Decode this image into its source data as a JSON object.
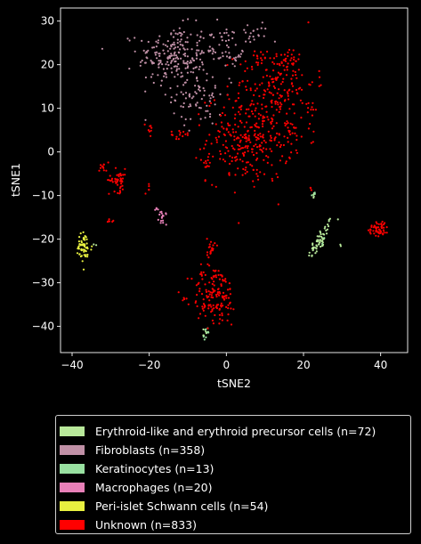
{
  "chart_data": {
    "type": "scatter",
    "xlabel": "tSNE2",
    "ylabel": "tSNE1",
    "xlim": [
      -43,
      47
    ],
    "ylim": [
      -46,
      33
    ],
    "x_ticks": [
      -40,
      -20,
      0,
      20,
      40
    ],
    "y_ticks": [
      -40,
      -30,
      -20,
      -10,
      0,
      10,
      20,
      30
    ],
    "x_tick_labels": [
      "−40",
      "−20",
      "0",
      "20",
      "40"
    ],
    "y_tick_labels": [
      "−40",
      "−30",
      "−20",
      "−10",
      "0",
      "10",
      "20",
      "30"
    ],
    "grid": false,
    "legend_position": "below",
    "series": [
      {
        "name": "Erythroid-like and erythroid precursor cells (n=72)",
        "color": "#b8e89a",
        "clusters": [
          {
            "x": 24.5,
            "y": -20.0,
            "sx": 1.6,
            "sy": 2.3,
            "n": 58,
            "rho": 0.85
          },
          {
            "x": 22.5,
            "y": -9.8,
            "sx": 0.4,
            "sy": 0.4,
            "n": 4
          },
          {
            "x": -5.5,
            "y": -41.5,
            "sx": 0.6,
            "sy": 0.6,
            "n": 6
          },
          {
            "x": 29.5,
            "y": -21.5,
            "sx": 0.2,
            "sy": 0.2,
            "n": 2
          },
          {
            "x": -34.0,
            "y": -21.0,
            "sx": 0.3,
            "sy": 0.3,
            "n": 2
          }
        ]
      },
      {
        "name": "Fibroblasts (n=358)",
        "color": "#c090a6",
        "clusters": [
          {
            "x": -14.0,
            "y": 22.0,
            "sx": 4.5,
            "sy": 3.5,
            "n": 200
          },
          {
            "x": -7.0,
            "y": 13.0,
            "sx": 3.5,
            "sy": 3.5,
            "n": 80
          },
          {
            "x": -2.0,
            "y": 24.0,
            "sx": 3.0,
            "sy": 2.5,
            "n": 48
          },
          {
            "x": 7.0,
            "y": 27.0,
            "sx": 2.0,
            "sy": 1.5,
            "n": 20
          },
          {
            "x": 3.0,
            "y": 22.0,
            "sx": 1.0,
            "sy": 1.0,
            "n": 10
          }
        ]
      },
      {
        "name": "Keratinocytes (n=13)",
        "color": "#98e0a0",
        "clusters": [
          {
            "x": -5.0,
            "y": -41.5,
            "sx": 0.7,
            "sy": 0.6,
            "n": 8
          },
          {
            "x": 22.5,
            "y": -10.0,
            "sx": 0.3,
            "sy": 0.3,
            "n": 3
          },
          {
            "x": 24.5,
            "y": -20.5,
            "sx": 0.4,
            "sy": 0.4,
            "n": 2
          }
        ]
      },
      {
        "name": "Macrophages (n=20)",
        "color": "#e880b8",
        "clusters": [
          {
            "x": -16.5,
            "y": -15.0,
            "sx": 0.5,
            "sy": 0.8,
            "n": 16
          },
          {
            "x": -18.0,
            "y": -13.5,
            "sx": 0.3,
            "sy": 0.3,
            "n": 4
          }
        ]
      },
      {
        "name": "Peri-islet Schwann cells (n=54)",
        "color": "#e8f040",
        "clusters": [
          {
            "x": -37.0,
            "y": -22.0,
            "sx": 1.1,
            "sy": 1.8,
            "n": 54
          }
        ]
      },
      {
        "name": "Unknown (n=833)",
        "color": "#ff0000",
        "clusters": [
          {
            "x": 6.0,
            "y": 3.0,
            "sx": 5.5,
            "sy": 5.0,
            "n": 300
          },
          {
            "x": 13.0,
            "y": 16.0,
            "sx": 5.0,
            "sy": 4.0,
            "n": 150
          },
          {
            "x": -3.0,
            "y": -33.0,
            "sx": 3.0,
            "sy": 3.5,
            "n": 150
          },
          {
            "x": 39.5,
            "y": -17.5,
            "sx": 1.3,
            "sy": 0.9,
            "n": 50
          },
          {
            "x": -28.0,
            "y": -6.5,
            "sx": 1.2,
            "sy": 1.3,
            "n": 45
          },
          {
            "x": -32.0,
            "y": -3.5,
            "sx": 0.7,
            "sy": 0.7,
            "n": 12
          },
          {
            "x": -12.0,
            "y": 4.0,
            "sx": 1.2,
            "sy": 0.5,
            "n": 15
          },
          {
            "x": -4.0,
            "y": -22.0,
            "sx": 0.5,
            "sy": 1.3,
            "n": 20
          },
          {
            "x": -20.0,
            "y": 5.5,
            "sx": 0.5,
            "sy": 0.8,
            "n": 8
          },
          {
            "x": -20.0,
            "y": -8.5,
            "sx": 0.3,
            "sy": 0.5,
            "n": 5
          },
          {
            "x": -30.0,
            "y": -16.0,
            "sx": 0.4,
            "sy": 0.5,
            "n": 6
          },
          {
            "x": 22.0,
            "y": -8.5,
            "sx": 0.3,
            "sy": 0.3,
            "n": 3
          },
          {
            "x": -5.0,
            "y": -2.5,
            "sx": 0.5,
            "sy": 0.8,
            "n": 10
          },
          {
            "x": 22.0,
            "y": 10.0,
            "sx": 0.8,
            "sy": 2.0,
            "n": 12
          },
          {
            "x": 17.0,
            "y": 4.5,
            "sx": 1.2,
            "sy": 1.2,
            "n": 15
          },
          {
            "x": 16.0,
            "y": 21.0,
            "sx": 1.5,
            "sy": 1.0,
            "n": 20
          },
          {
            "x": 9.0,
            "y": 21.5,
            "sx": 1.5,
            "sy": 1.0,
            "n": 12
          }
        ]
      }
    ]
  }
}
